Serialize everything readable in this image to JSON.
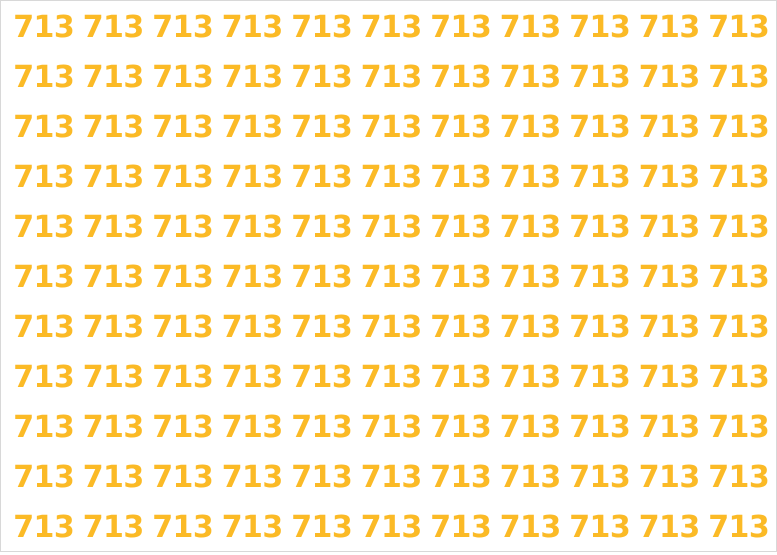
{
  "puzzle": {
    "rows": 11,
    "cols": 11,
    "number": "713",
    "color": "#FBBA26",
    "cells": [
      [
        "713",
        "713",
        "713",
        "713",
        "713",
        "713",
        "713",
        "713",
        "713",
        "713",
        "713"
      ],
      [
        "713",
        "713",
        "713",
        "713",
        "713",
        "713",
        "713",
        "713",
        "713",
        "713",
        "713"
      ],
      [
        "713",
        "713",
        "713",
        "713",
        "713",
        "713",
        "713",
        "713",
        "713",
        "713",
        "713"
      ],
      [
        "713",
        "713",
        "713",
        "713",
        "713",
        "713",
        "713",
        "713",
        "713",
        "713",
        "713"
      ],
      [
        "713",
        "713",
        "713",
        "713",
        "713",
        "713",
        "713",
        "713",
        "713",
        "713",
        "713"
      ],
      [
        "713",
        "713",
        "713",
        "713",
        "713",
        "713",
        "713",
        "713",
        "713",
        "713",
        "713"
      ],
      [
        "713",
        "713",
        "713",
        "713",
        "713",
        "713",
        "713",
        "713",
        "713",
        "713",
        "713"
      ],
      [
        "713",
        "713",
        "713",
        "713",
        "713",
        "713",
        "713",
        "713",
        "713",
        "713",
        "713"
      ],
      [
        "713",
        "713",
        "713",
        "713",
        "713",
        "713",
        "713",
        "713",
        "713",
        "713",
        "713"
      ],
      [
        "713",
        "713",
        "713",
        "713",
        "713",
        "713",
        "713",
        "713",
        "713",
        "713",
        "713"
      ],
      [
        "713",
        "713",
        "713",
        "713",
        "713",
        "713",
        "713",
        "713",
        "713",
        "713",
        "713"
      ]
    ]
  }
}
